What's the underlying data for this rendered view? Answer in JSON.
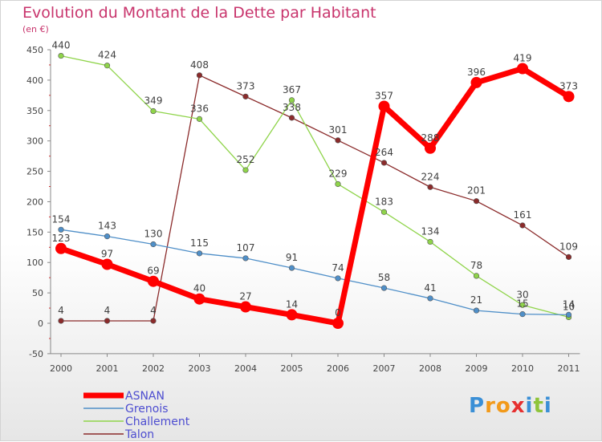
{
  "chart_data": {
    "type": "line",
    "title": "Evolution du Montant de la Dette par Habitant",
    "subtitle": "(en €)",
    "x": [
      "2000",
      "2001",
      "2002",
      "2003",
      "2004",
      "2005",
      "2006",
      "2007",
      "2008",
      "2009",
      "2010",
      "2011"
    ],
    "ylim": [
      -50,
      450
    ],
    "yticks": [
      -50,
      0,
      50,
      100,
      150,
      200,
      250,
      300,
      350,
      400,
      450
    ],
    "grid": false,
    "legend_position": "bottom-left",
    "series": [
      {
        "name": "ASNAN",
        "color": "#ff0000",
        "values": [
          123,
          97,
          69,
          40,
          27,
          14,
          0,
          357,
          288,
          396,
          419,
          373
        ]
      },
      {
        "name": "Grenois",
        "color": "#4f8fc8",
        "values": [
          154,
          143,
          130,
          115,
          107,
          91,
          74,
          58,
          41,
          21,
          15,
          14
        ]
      },
      {
        "name": "Challement",
        "color": "#8fd44a",
        "values": [
          440,
          424,
          349,
          336,
          252,
          367,
          229,
          183,
          134,
          78,
          30,
          10
        ]
      },
      {
        "name": "Talon",
        "color": "#8b2b2b",
        "values": [
          4,
          4,
          4,
          408,
          373,
          338,
          301,
          264,
          224,
          201,
          161,
          109
        ]
      }
    ]
  },
  "logo": {
    "letters": [
      "P",
      "r",
      "o",
      "x",
      "i",
      "t",
      "i"
    ]
  }
}
